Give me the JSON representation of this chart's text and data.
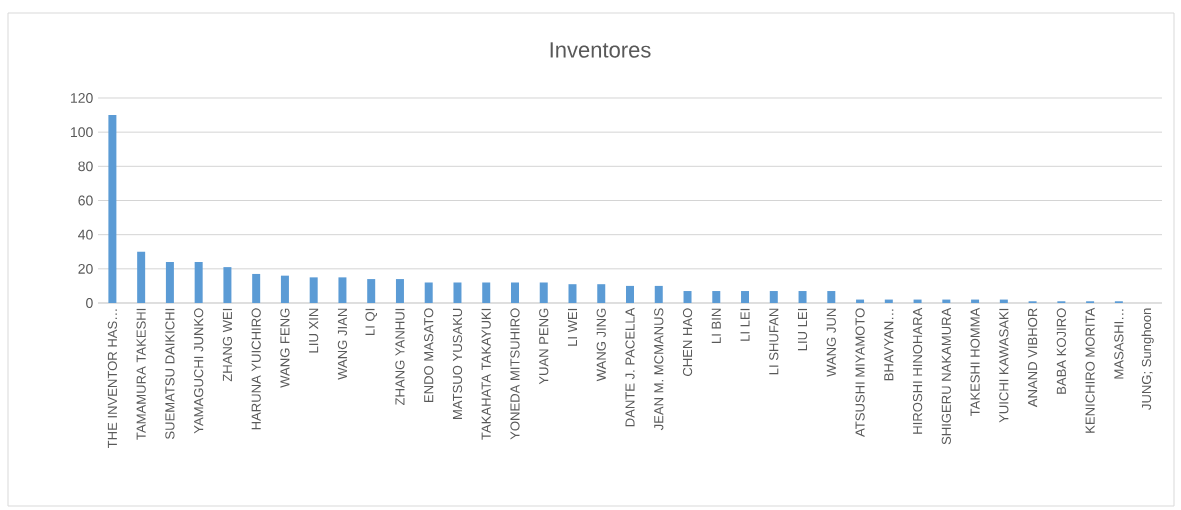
{
  "chart_data": {
    "type": "bar",
    "title": "Inventores",
    "categories": [
      "THE INVENTOR HAS…",
      "TAMAMURA TAKESHI",
      "SUEMATSU DAIKICHI",
      "YAMAGUCHI JUNKO",
      "ZHANG WEI",
      "HARUNA YUICHIRO",
      "WANG FENG",
      "LIU XIN",
      "WANG JIAN",
      "LI QI",
      "ZHANG YANHUI",
      "ENDO MASATO",
      "MATSUO YUSAKU",
      "TAKAHATA TAKAYUKI",
      "YONEDA MITSUHIRO",
      "YUAN PENG",
      "LI WEI",
      "WANG JING",
      "DANTE J. PACELLA",
      "JEAN M. MCMANUS",
      "CHEN HAO",
      "LI BIN",
      "LI LEI",
      "LI SHUFAN",
      "LIU LEI",
      "WANG JUN",
      "ATSUSHI MIYAMOTO",
      "BHAVYAN…",
      "HIROSHI HINOHARA",
      "SHIGERU NAKAMURA",
      "TAKESHI HOMMA",
      "YUICHI KAWASAKI",
      "ANAND VIBHOR",
      "BABA KOJIRO",
      "KENICHIRO MORITA",
      "MASASHI…",
      "JUNG; Sunghoon"
    ],
    "values": [
      110,
      30,
      24,
      24,
      21,
      17,
      16,
      15,
      15,
      14,
      14,
      12,
      12,
      12,
      12,
      12,
      11,
      11,
      10,
      10,
      7,
      7,
      7,
      7,
      7,
      7,
      2,
      2,
      2,
      2,
      2,
      2,
      1,
      1,
      1,
      1,
      0
    ],
    "color": "#5b9bd5",
    "ylim": [
      0,
      120
    ],
    "yticks": [
      0,
      20,
      40,
      60,
      80,
      100,
      120
    ],
    "grid": "y"
  }
}
